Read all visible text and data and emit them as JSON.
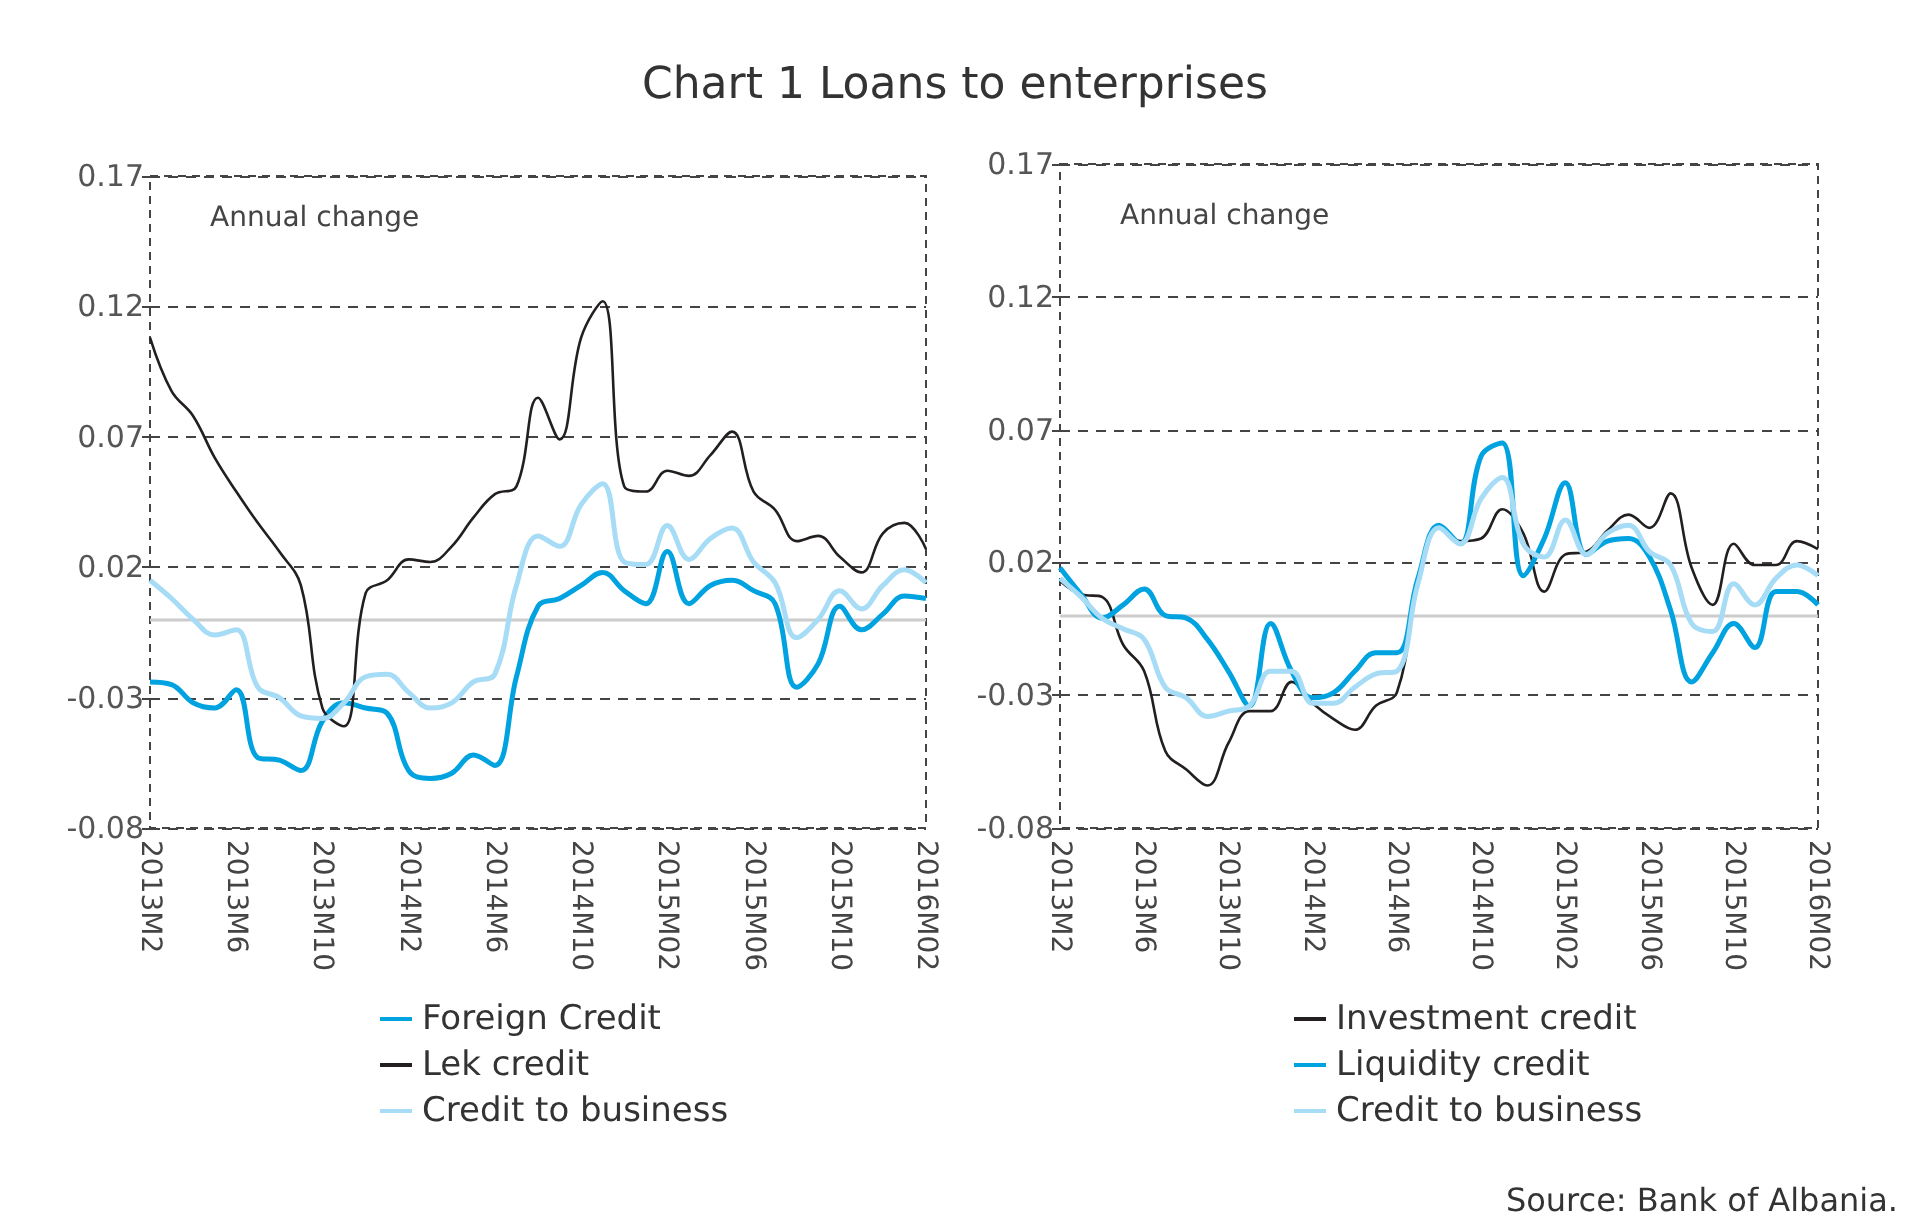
{
  "chart_data": [
    {
      "type": "line",
      "title": "Chart 1 Loans to enterprises",
      "annotations": [
        "Annual change"
      ],
      "categories": [
        "2013M2",
        null,
        null,
        null,
        "2013M6",
        null,
        null,
        null,
        "2013M10",
        null,
        null,
        null,
        "2014M2",
        null,
        null,
        null,
        "2014M6",
        null,
        null,
        null,
        "2014M10",
        null,
        null,
        null,
        "2015M02",
        null,
        null,
        null,
        "2015M06",
        null,
        null,
        null,
        "2015M10",
        null,
        null,
        null,
        "2016M02"
      ],
      "series": [
        {
          "name": "Foreign Credit",
          "color": "#00a3e0",
          "values": [
            -0.024,
            -0.025,
            -0.032,
            -0.034,
            -0.027,
            -0.053,
            -0.054,
            -0.058,
            -0.039,
            -0.032,
            -0.034,
            -0.036,
            -0.058,
            -0.061,
            -0.059,
            -0.052,
            -0.056,
            -0.022,
            0.005,
            0.008,
            0.013,
            0.018,
            0.011,
            0.006,
            0.026,
            0.006,
            0.013,
            0.015,
            0.011,
            0.006,
            -0.026,
            -0.017,
            0.005,
            -0.004,
            0.002,
            0.009,
            0.008
          ]
        },
        {
          "name": "Lek credit",
          "color": "#231f20",
          "values": [
            0.108,
            0.0875,
            0.078,
            0.062,
            0.049,
            0.037,
            0.026,
            0.013,
            -0.034,
            -0.041,
            0.01,
            0.015,
            0.023,
            0.022,
            0.028,
            0.039,
            0.048,
            0.051,
            0.085,
            0.069,
            0.108,
            0.122,
            0.051,
            0.049,
            0.057,
            0.055,
            0.063,
            0.072,
            0.049,
            0.042,
            0.03,
            0.032,
            0.024,
            0.018,
            0.033,
            0.037,
            0.027
          ]
        },
        {
          "name": "Credit to business",
          "color": "#a6dcf5",
          "values": [
            0.015,
            0.008,
            0.0,
            -0.006,
            -0.004,
            -0.026,
            -0.03,
            -0.037,
            -0.038,
            -0.032,
            -0.022,
            -0.021,
            -0.028,
            -0.034,
            -0.032,
            -0.024,
            -0.021,
            0.013,
            0.032,
            0.028,
            0.044,
            0.052,
            0.022,
            0.021,
            0.036,
            0.023,
            0.031,
            0.035,
            0.022,
            0.014,
            -0.007,
            0.0,
            0.011,
            0.004,
            0.013,
            0.019,
            0.014
          ]
        }
      ],
      "ylim": [
        -0.08,
        0.17
      ],
      "yticks": [
        -0.08,
        -0.03,
        0.02,
        0.07,
        0.12,
        0.17
      ],
      "grid": "y",
      "legend": "bottom",
      "marker": "none",
      "line_style": "solid",
      "ref_lines": [
        {
          "axis": "y",
          "value": 0,
          "color": "#cccccc"
        }
      ]
    },
    {
      "type": "line",
      "annotations": [
        "Annual change",
        "Source: Bank of Albania."
      ],
      "categories": [
        "2013M2",
        null,
        null,
        null,
        "2013M6",
        null,
        null,
        null,
        "2013M10",
        null,
        null,
        null,
        "2014M2",
        null,
        null,
        null,
        "2014M6",
        null,
        null,
        null,
        "2014M10",
        null,
        null,
        null,
        "2015M02",
        null,
        null,
        null,
        "2015M06",
        null,
        null,
        null,
        "2015M10",
        null,
        null,
        null,
        "2016M02"
      ],
      "series": [
        {
          "name": "Investment credit",
          "color": "#231f20",
          "values": [
            0.013,
            0.008,
            0.007,
            -0.011,
            -0.021,
            -0.051,
            -0.058,
            -0.064,
            -0.048,
            -0.036,
            -0.036,
            -0.025,
            -0.033,
            -0.039,
            -0.043,
            -0.034,
            -0.029,
            0.012,
            0.033,
            0.028,
            0.029,
            0.04,
            0.031,
            0.009,
            0.023,
            0.024,
            0.032,
            0.038,
            0.033,
            0.046,
            0.018,
            0.004,
            0.027,
            0.019,
            0.019,
            0.028,
            0.025
          ]
        },
        {
          "name": "Liquidity credit",
          "color": "#00a3e0",
          "values": [
            0.018,
            0.008,
            -0.001,
            0.004,
            0.01,
            0.0,
            -0.001,
            -0.009,
            -0.021,
            -0.034,
            -0.003,
            -0.021,
            -0.031,
            -0.029,
            -0.021,
            -0.014,
            -0.014,
            0.014,
            0.034,
            0.027,
            0.06,
            0.065,
            0.015,
            0.029,
            0.05,
            0.023,
            0.028,
            0.029,
            0.022,
            0.002,
            -0.025,
            -0.014,
            -0.003,
            -0.012,
            0.009,
            0.009,
            0.004
          ]
        },
        {
          "name": "Credit to business",
          "color": "#a6dcf5",
          "values": [
            0.014,
            0.007,
            -0.001,
            -0.005,
            -0.009,
            -0.027,
            -0.031,
            -0.038,
            -0.036,
            -0.034,
            -0.021,
            -0.021,
            -0.033,
            -0.033,
            -0.027,
            -0.022,
            -0.021,
            0.012,
            0.033,
            0.027,
            0.044,
            0.052,
            0.027,
            0.022,
            0.036,
            0.023,
            0.031,
            0.034,
            0.024,
            0.019,
            -0.003,
            -0.006,
            0.012,
            0.004,
            0.014,
            0.019,
            0.015
          ]
        }
      ],
      "ylim": [
        -0.08,
        0.17
      ],
      "yticks": [
        -0.08,
        -0.03,
        0.02,
        0.07,
        0.12,
        0.17
      ],
      "grid": "y",
      "legend": "bottom",
      "marker": "none",
      "line_style": "solid",
      "ref_lines": [
        {
          "axis": "y",
          "value": 0,
          "color": "#cccccc"
        }
      ]
    }
  ]
}
